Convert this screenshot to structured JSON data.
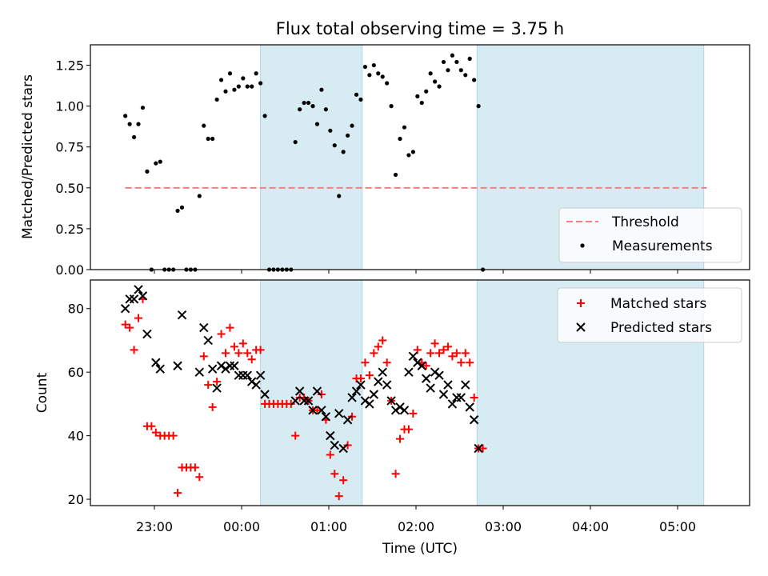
{
  "title": "Flux total observing time = 3.75 h",
  "xlabel": "Time (UTC)",
  "x_ticks": [
    "23:00",
    "00:00",
    "01:00",
    "02:00",
    "03:00",
    "04:00",
    "05:00"
  ],
  "shaded_color": "#add8e6",
  "chart_data": [
    {
      "type": "scatter",
      "ylabel": "Matched/Predicted stars",
      "ylim": [
        0,
        1.375
      ],
      "y_ticks": [
        "0.00",
        "0.25",
        "0.50",
        "0.75",
        "1.00",
        "1.25"
      ],
      "legend_position": "lower-right",
      "threshold": {
        "name": "Threshold",
        "value": 0.5,
        "x_start": "22:40",
        "x_end": "05:20",
        "color": "#f08080"
      },
      "series": [
        {
          "name": "Measurements",
          "color": "#000000",
          "points": [
            [
              "22:40",
              0.94
            ],
            [
              "22:43",
              0.89
            ],
            [
              "22:46",
              0.81
            ],
            [
              "22:49",
              0.89
            ],
            [
              "22:52",
              0.99
            ],
            [
              "22:55",
              0.6
            ],
            [
              "22:58",
              0.0
            ],
            [
              "23:01",
              0.65
            ],
            [
              "23:04",
              0.66
            ],
            [
              "23:07",
              0.0
            ],
            [
              "23:10",
              0.0
            ],
            [
              "23:13",
              0.0
            ],
            [
              "23:16",
              0.36
            ],
            [
              "23:19",
              0.38
            ],
            [
              "23:22",
              0.0
            ],
            [
              "23:25",
              0.0
            ],
            [
              "23:28",
              0.0
            ],
            [
              "23:31",
              0.45
            ],
            [
              "23:34",
              0.88
            ],
            [
              "23:37",
              0.8
            ],
            [
              "23:40",
              0.8
            ],
            [
              "23:43",
              1.04
            ],
            [
              "23:46",
              1.16
            ],
            [
              "23:49",
              1.09
            ],
            [
              "23:52",
              1.2
            ],
            [
              "23:55",
              1.1
            ],
            [
              "23:58",
              1.12
            ],
            [
              "00:01",
              1.17
            ],
            [
              "00:04",
              1.12
            ],
            [
              "00:07",
              1.12
            ],
            [
              "00:10",
              1.2
            ],
            [
              "00:13",
              1.14
            ],
            [
              "00:16",
              0.94
            ],
            [
              "00:19",
              0.0
            ],
            [
              "00:22",
              0.0
            ],
            [
              "00:25",
              0.0
            ],
            [
              "00:28",
              0.0
            ],
            [
              "00:31",
              0.0
            ],
            [
              "00:34",
              0.0
            ],
            [
              "00:37",
              0.78
            ],
            [
              "00:40",
              0.98
            ],
            [
              "00:43",
              1.02
            ],
            [
              "00:46",
              1.02
            ],
            [
              "00:49",
              1.0
            ],
            [
              "00:52",
              0.89
            ],
            [
              "00:55",
              1.1
            ],
            [
              "00:58",
              0.98
            ],
            [
              "01:01",
              0.85
            ],
            [
              "01:04",
              0.76
            ],
            [
              "01:07",
              0.45
            ],
            [
              "01:10",
              0.72
            ],
            [
              "01:13",
              0.82
            ],
            [
              "01:16",
              0.88
            ],
            [
              "01:19",
              1.07
            ],
            [
              "01:22",
              1.04
            ],
            [
              "01:25",
              1.24
            ],
            [
              "01:28",
              1.19
            ],
            [
              "01:31",
              1.25
            ],
            [
              "01:34",
              1.2
            ],
            [
              "01:37",
              1.18
            ],
            [
              "01:40",
              1.14
            ],
            [
              "01:43",
              1.0
            ],
            [
              "01:46",
              0.58
            ],
            [
              "01:49",
              0.8
            ],
            [
              "01:52",
              0.87
            ],
            [
              "01:55",
              0.7
            ],
            [
              "01:58",
              0.72
            ],
            [
              "02:01",
              1.06
            ],
            [
              "02:04",
              1.02
            ],
            [
              "02:07",
              1.09
            ],
            [
              "02:10",
              1.2
            ],
            [
              "02:13",
              1.15
            ],
            [
              "02:16",
              1.12
            ],
            [
              "02:19",
              1.27
            ],
            [
              "02:22",
              1.22
            ],
            [
              "02:25",
              1.31
            ],
            [
              "02:28",
              1.27
            ],
            [
              "02:31",
              1.22
            ],
            [
              "02:34",
              1.19
            ],
            [
              "02:37",
              1.29
            ],
            [
              "02:40",
              1.16
            ],
            [
              "02:43",
              1.0
            ],
            [
              "02:46",
              0.0
            ]
          ]
        }
      ]
    },
    {
      "type": "scatter",
      "ylabel": "Count",
      "ylim": [
        18,
        89
      ],
      "y_ticks": [
        "20",
        "40",
        "60",
        "80"
      ],
      "legend_position": "upper-right",
      "series": [
        {
          "name": "Matched stars",
          "marker": "plus",
          "color": "#ff0000",
          "points": [
            [
              "22:40",
              75
            ],
            [
              "22:43",
              74
            ],
            [
              "22:46",
              67
            ],
            [
              "22:49",
              77
            ],
            [
              "22:52",
              83
            ],
            [
              "22:55",
              43
            ],
            [
              "22:58",
              43
            ],
            [
              "23:01",
              41
            ],
            [
              "23:04",
              40
            ],
            [
              "23:07",
              40
            ],
            [
              "23:10",
              40
            ],
            [
              "23:13",
              40
            ],
            [
              "23:16",
              22
            ],
            [
              "23:19",
              30
            ],
            [
              "23:22",
              30
            ],
            [
              "23:25",
              30
            ],
            [
              "23:28",
              30
            ],
            [
              "23:31",
              27
            ],
            [
              "23:34",
              65
            ],
            [
              "23:37",
              56
            ],
            [
              "23:40",
              49
            ],
            [
              "23:43",
              57
            ],
            [
              "23:46",
              72
            ],
            [
              "23:49",
              66
            ],
            [
              "23:52",
              74
            ],
            [
              "23:55",
              68
            ],
            [
              "23:58",
              66
            ],
            [
              "00:01",
              69
            ],
            [
              "00:04",
              66
            ],
            [
              "00:07",
              64
            ],
            [
              "00:10",
              67
            ],
            [
              "00:13",
              67
            ],
            [
              "00:16",
              50
            ],
            [
              "00:19",
              50
            ],
            [
              "00:22",
              50
            ],
            [
              "00:25",
              50
            ],
            [
              "00:28",
              50
            ],
            [
              "00:31",
              50
            ],
            [
              "00:34",
              50
            ],
            [
              "00:37",
              40
            ],
            [
              "00:40",
              52
            ],
            [
              "00:43",
              52
            ],
            [
              "00:46",
              51
            ],
            [
              "00:49",
              48
            ],
            [
              "00:52",
              48
            ],
            [
              "00:55",
              53
            ],
            [
              "00:58",
              45
            ],
            [
              "01:01",
              34
            ],
            [
              "01:04",
              28
            ],
            [
              "01:07",
              21
            ],
            [
              "01:10",
              26
            ],
            [
              "01:13",
              37
            ],
            [
              "01:16",
              46
            ],
            [
              "01:19",
              58
            ],
            [
              "01:22",
              58
            ],
            [
              "01:25",
              63
            ],
            [
              "01:28",
              59
            ],
            [
              "01:31",
              66
            ],
            [
              "01:34",
              68
            ],
            [
              "01:37",
              70
            ],
            [
              "01:40",
              63
            ],
            [
              "01:43",
              51
            ],
            [
              "01:46",
              28
            ],
            [
              "01:49",
              39
            ],
            [
              "01:52",
              42
            ],
            [
              "01:55",
              42
            ],
            [
              "01:58",
              47
            ],
            [
              "02:01",
              67
            ],
            [
              "02:04",
              63
            ],
            [
              "02:07",
              62
            ],
            [
              "02:10",
              66
            ],
            [
              "02:13",
              69
            ],
            [
              "02:16",
              66
            ],
            [
              "02:19",
              67
            ],
            [
              "02:22",
              68
            ],
            [
              "02:25",
              65
            ],
            [
              "02:28",
              66
            ],
            [
              "02:31",
              63
            ],
            [
              "02:34",
              66
            ],
            [
              "02:37",
              63
            ],
            [
              "02:40",
              52
            ],
            [
              "02:43",
              36
            ],
            [
              "02:46",
              36
            ]
          ]
        },
        {
          "name": "Predicted stars",
          "marker": "x",
          "color": "#000000",
          "points": [
            [
              "22:40",
              80
            ],
            [
              "22:43",
              83
            ],
            [
              "22:46",
              83
            ],
            [
              "22:49",
              86
            ],
            [
              "22:52",
              84
            ],
            [
              "22:55",
              72
            ],
            [
              "23:01",
              63
            ],
            [
              "23:04",
              61
            ],
            [
              "23:16",
              62
            ],
            [
              "23:19",
              78
            ],
            [
              "23:31",
              60
            ],
            [
              "23:34",
              74
            ],
            [
              "23:37",
              70
            ],
            [
              "23:40",
              61
            ],
            [
              "23:43",
              55
            ],
            [
              "23:46",
              62
            ],
            [
              "23:49",
              61
            ],
            [
              "23:52",
              62
            ],
            [
              "23:55",
              62
            ],
            [
              "23:58",
              59
            ],
            [
              "00:01",
              59
            ],
            [
              "00:04",
              59
            ],
            [
              "00:07",
              57
            ],
            [
              "00:10",
              56
            ],
            [
              "00:13",
              59
            ],
            [
              "00:16",
              53
            ],
            [
              "00:37",
              51
            ],
            [
              "00:40",
              54
            ],
            [
              "00:43",
              51
            ],
            [
              "00:46",
              51
            ],
            [
              "00:49",
              48
            ],
            [
              "00:52",
              54
            ],
            [
              "00:55",
              48
            ],
            [
              "00:58",
              46
            ],
            [
              "01:01",
              40
            ],
            [
              "01:04",
              37
            ],
            [
              "01:07",
              47
            ],
            [
              "01:10",
              36
            ],
            [
              "01:13",
              45
            ],
            [
              "01:16",
              52
            ],
            [
              "01:19",
              54
            ],
            [
              "01:22",
              56
            ],
            [
              "01:25",
              51
            ],
            [
              "01:28",
              50
            ],
            [
              "01:31",
              53
            ],
            [
              "01:34",
              57
            ],
            [
              "01:37",
              60
            ],
            [
              "01:40",
              56
            ],
            [
              "01:43",
              51
            ],
            [
              "01:46",
              48
            ],
            [
              "01:49",
              49
            ],
            [
              "01:52",
              48
            ],
            [
              "01:55",
              60
            ],
            [
              "01:58",
              65
            ],
            [
              "02:01",
              63
            ],
            [
              "02:04",
              62
            ],
            [
              "02:07",
              58
            ],
            [
              "02:10",
              55
            ],
            [
              "02:13",
              60
            ],
            [
              "02:16",
              59
            ],
            [
              "02:19",
              53
            ],
            [
              "02:22",
              56
            ],
            [
              "02:25",
              50
            ],
            [
              "02:28",
              52
            ],
            [
              "02:31",
              52
            ],
            [
              "02:34",
              56
            ],
            [
              "02:37",
              49
            ],
            [
              "02:40",
              45
            ],
            [
              "02:43",
              36
            ]
          ]
        }
      ]
    }
  ],
  "shaded_intervals": [
    [
      "00:13",
      "01:23"
    ],
    [
      "02:42",
      "05:18"
    ]
  ]
}
